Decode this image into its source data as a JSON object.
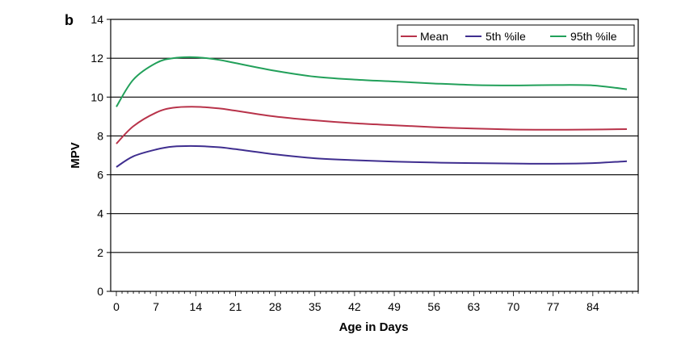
{
  "panel_label": "b",
  "colors": {
    "mean": "#b8334a",
    "p5": "#3f2e8f",
    "p95": "#22a05a",
    "grid": "#000000",
    "frame": "#000000"
  },
  "chart_data": {
    "type": "line",
    "title": "",
    "xlabel": "Age in Days",
    "ylabel": "MPV",
    "xlim": [
      -1,
      92
    ],
    "ylim": [
      0,
      14
    ],
    "x_ticks": [
      0,
      7,
      14,
      21,
      28,
      35,
      42,
      49,
      56,
      63,
      70,
      77,
      84
    ],
    "y_ticks": [
      0,
      2,
      4,
      6,
      8,
      10,
      12,
      14
    ],
    "grid": "horizontal",
    "legend": "top-right",
    "series": [
      {
        "name": "Mean",
        "color_key": "mean",
        "x": [
          0,
          3,
          7,
          10,
          14,
          18,
          21,
          28,
          35,
          42,
          49,
          56,
          63,
          70,
          77,
          84,
          90
        ],
        "y": [
          7.6,
          8.5,
          9.2,
          9.45,
          9.5,
          9.42,
          9.3,
          9.0,
          8.8,
          8.65,
          8.55,
          8.45,
          8.38,
          8.33,
          8.32,
          8.33,
          8.35
        ]
      },
      {
        "name": "5th %ile",
        "color_key": "p5",
        "x": [
          0,
          3,
          7,
          10,
          14,
          18,
          21,
          28,
          35,
          42,
          49,
          56,
          63,
          70,
          77,
          84,
          90
        ],
        "y": [
          6.4,
          6.95,
          7.3,
          7.45,
          7.48,
          7.42,
          7.32,
          7.05,
          6.85,
          6.75,
          6.68,
          6.63,
          6.6,
          6.58,
          6.57,
          6.6,
          6.7
        ]
      },
      {
        "name": "95th %ile",
        "color_key": "p95",
        "x": [
          0,
          3,
          7,
          10,
          14,
          18,
          21,
          28,
          35,
          42,
          49,
          56,
          63,
          70,
          77,
          84,
          90
        ],
        "y": [
          9.5,
          10.9,
          11.75,
          12.0,
          12.05,
          11.92,
          11.75,
          11.35,
          11.05,
          10.9,
          10.8,
          10.7,
          10.62,
          10.6,
          10.62,
          10.6,
          10.4
        ]
      }
    ]
  }
}
